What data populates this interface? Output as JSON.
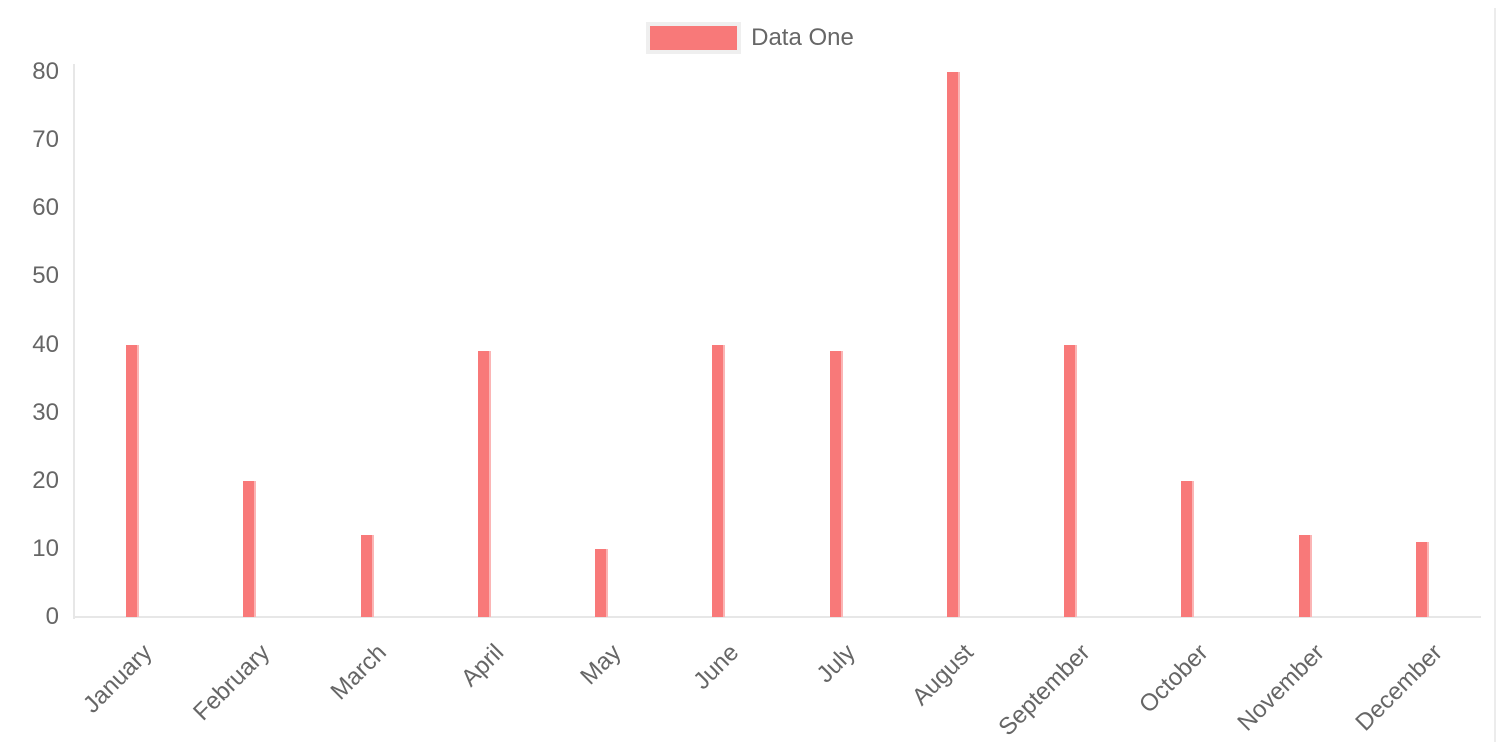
{
  "page": {
    "background": "#ffffff",
    "right_border_color": "#ececec"
  },
  "legend": {
    "label": "Data One",
    "swatch_color": "#f87979",
    "swatch_border_color": "#efefef",
    "position": "top"
  },
  "chart_data": {
    "type": "bar",
    "title": "",
    "xlabel": "",
    "ylabel": "",
    "categories": [
      "January",
      "February",
      "March",
      "April",
      "May",
      "June",
      "July",
      "August",
      "September",
      "October",
      "November",
      "December"
    ],
    "series": [
      {
        "name": "Data One",
        "color": "#f87979",
        "values": [
          40,
          20,
          12,
          39,
          10,
          40,
          39,
          80,
          40,
          20,
          12,
          11
        ]
      }
    ],
    "ylim": [
      0,
      80
    ],
    "yticks": [
      0,
      10,
      20,
      30,
      40,
      50,
      60,
      70,
      80
    ],
    "ytick_step": 10,
    "grid": false,
    "legend_position": "top",
    "axis_color": "#e7e7e7",
    "tick_label_color": "#666666",
    "x_label_rotation_deg": -45
  }
}
